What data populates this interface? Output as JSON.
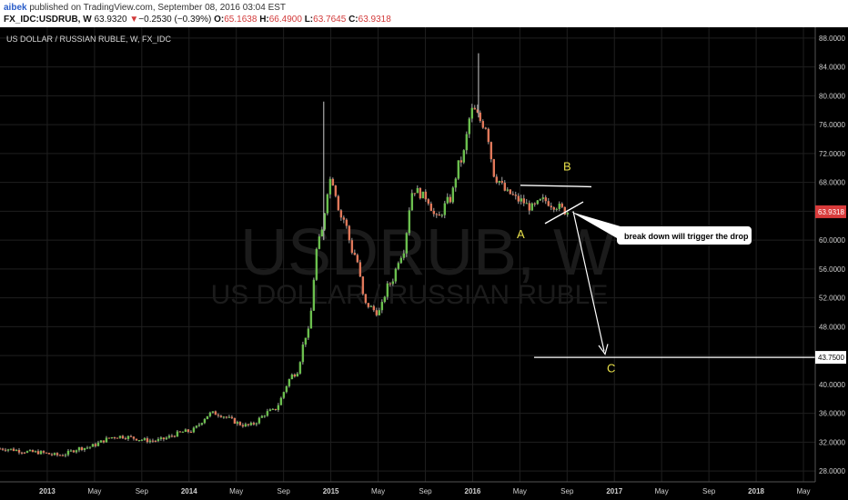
{
  "header": {
    "author": "aibek",
    "published_text": "published on TradingView.com, September 08, 2016 03:04 EST",
    "symbol": "FX_IDC:USDRUB, W",
    "last": "63.9320",
    "change_arrow": "▼",
    "change": "−0.2530 (−0.39%)",
    "o_label": "O:",
    "o_value": "65.1638",
    "h_label": "H:",
    "h_value": "66.4900",
    "l_label": "L:",
    "l_value": "63.7645",
    "c_label": "C:",
    "c_value": "63.9318"
  },
  "chart": {
    "pair_title": "US DOLLAR / RUSSIAN RUBLE, W, FX_IDC",
    "watermark_symbol": "USDRUB, W",
    "watermark_name": "US DOLLAR / RUSSIAN RUBLE",
    "price_tag": "63.9318",
    "level_tag": "43.7500",
    "annotation_callout": "break down will trigger the drop",
    "wave_labels": {
      "a": "A",
      "b": "B",
      "c": "C"
    },
    "colors": {
      "up": "#6bbf4e",
      "down": "#e0785a",
      "price_tag": "#d93b3b",
      "wave_label": "#e8e04a",
      "background": "#000000",
      "grid": "#1f1f1f"
    }
  },
  "chart_data": {
    "type": "candlestick",
    "title": "US DOLLAR / RUSSIAN RUBLE, W, FX_IDC",
    "ylim": [
      26.5,
      89.5
    ],
    "y_ticks": [
      "28.0000",
      "32.0000",
      "36.0000",
      "40.0000",
      "44.0000",
      "48.0000",
      "52.0000",
      "56.0000",
      "60.0000",
      "64.0000",
      "68.0000",
      "72.0000",
      "76.0000",
      "80.0000",
      "84.0000",
      "88.0000"
    ],
    "x_ticks": [
      "2013",
      "May",
      "Sep",
      "2014",
      "May",
      "Sep",
      "2015",
      "May",
      "Sep",
      "2016",
      "May",
      "Sep",
      "2017",
      "May",
      "Sep",
      "2018",
      "May"
    ],
    "x_range": [
      "2012-09",
      "2018-06"
    ],
    "series_keypoints": [
      {
        "date": "2012-09",
        "close": 31.1
      },
      {
        "date": "2012-12",
        "close": 30.6
      },
      {
        "date": "2013-02",
        "close": 30.2
      },
      {
        "date": "2013-04",
        "close": 31.2
      },
      {
        "date": "2013-07",
        "close": 32.8
      },
      {
        "date": "2013-10",
        "close": 32.2
      },
      {
        "date": "2014-01",
        "close": 33.5
      },
      {
        "date": "2014-03",
        "close": 36.0
      },
      {
        "date": "2014-06",
        "close": 34.3
      },
      {
        "date": "2014-08",
        "close": 36.3
      },
      {
        "date": "2014-10",
        "close": 41.5
      },
      {
        "date": "2014-11",
        "close": 47.0
      },
      {
        "date": "2014-12",
        "close": 60.0
      },
      {
        "date": "2015-01",
        "close": 68.5
      },
      {
        "date": "2015-02",
        "close": 63.0
      },
      {
        "date": "2015-03",
        "close": 58.0
      },
      {
        "date": "2015-04",
        "close": 51.0
      },
      {
        "date": "2015-05",
        "close": 50.0
      },
      {
        "date": "2015-06",
        "close": 54.0
      },
      {
        "date": "2015-07",
        "close": 58.0
      },
      {
        "date": "2015-08",
        "close": 67.0
      },
      {
        "date": "2015-09",
        "close": 66.0
      },
      {
        "date": "2015-10",
        "close": 63.0
      },
      {
        "date": "2015-11",
        "close": 65.5
      },
      {
        "date": "2015-12",
        "close": 71.0
      },
      {
        "date": "2016-01",
        "close": 78.0
      },
      {
        "date": "2016-02",
        "close": 76.0
      },
      {
        "date": "2016-03",
        "close": 68.5
      },
      {
        "date": "2016-04",
        "close": 66.5
      },
      {
        "date": "2016-05",
        "close": 65.5
      },
      {
        "date": "2016-06",
        "close": 64.5
      },
      {
        "date": "2016-07",
        "close": 65.5
      },
      {
        "date": "2016-08",
        "close": 64.8
      },
      {
        "date": "2016-09",
        "close": 63.93
      }
    ],
    "annotation_levels": {
      "target_c": 43.75,
      "last_close": 63.9318
    }
  }
}
